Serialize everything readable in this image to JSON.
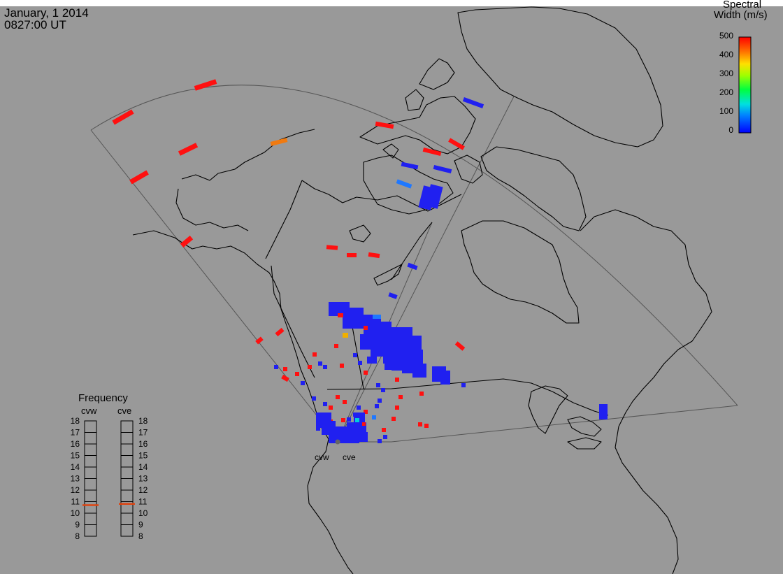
{
  "header": {
    "date": "January, 1 2014",
    "time": "0827:00 UT"
  },
  "colorbar": {
    "title_line1": "Spectral",
    "title_line2": "Width (m/s)",
    "ticks": [
      "500",
      "400",
      "300",
      "200",
      "100",
      "0"
    ]
  },
  "frequency": {
    "title": "Frequency",
    "radars": [
      {
        "name": "cvw",
        "selected_mhz": 10.7
      },
      {
        "name": "cve",
        "selected_mhz": 10.8
      }
    ],
    "scale": [
      "18",
      "17",
      "16",
      "15",
      "14",
      "13",
      "12",
      "11",
      "10",
      "9",
      "8"
    ],
    "marker_color": "#dd4411"
  },
  "sites": {
    "cvw": "cvw",
    "cve": "cve"
  },
  "colors": {
    "background": "#999999",
    "blue": "#2020f0",
    "light_blue": "#1f78ff",
    "cyan": "#00ccdd",
    "orange": "#f07a10",
    "yellow": "#f0b000",
    "red": "#ff1010"
  }
}
